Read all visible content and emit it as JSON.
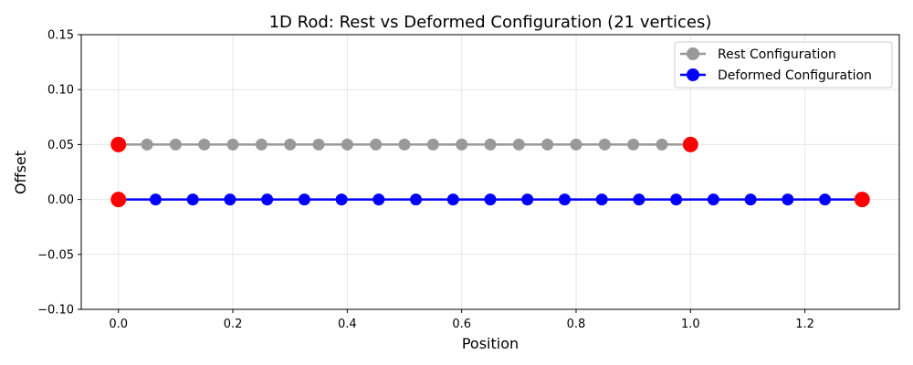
{
  "chart_data": {
    "type": "line",
    "title": "1D Rod: Rest vs Deformed Configuration (21 vertices)",
    "xlabel": "Position",
    "ylabel": "Offset",
    "xlim": [
      -0.065,
      1.365
    ],
    "ylim": [
      -0.1,
      0.15
    ],
    "xticks": [
      "0.0",
      "0.2",
      "0.4",
      "0.6",
      "0.8",
      "1.0",
      "1.2"
    ],
    "yticks": [
      "−0.10",
      "−0.05",
      "0.00",
      "0.05",
      "0.10",
      "0.15"
    ],
    "grid": true,
    "legend_position": "top-right",
    "series": [
      {
        "name": "Rest Configuration",
        "color": "#999999",
        "endpoint_color": "#ff0000",
        "x": [
          0.0,
          0.05,
          0.1,
          0.15,
          0.2,
          0.25,
          0.3,
          0.35,
          0.4,
          0.45,
          0.5,
          0.55,
          0.6,
          0.65,
          0.7,
          0.75,
          0.8,
          0.85,
          0.9,
          0.95,
          1.0
        ],
        "y": [
          0.05,
          0.05,
          0.05,
          0.05,
          0.05,
          0.05,
          0.05,
          0.05,
          0.05,
          0.05,
          0.05,
          0.05,
          0.05,
          0.05,
          0.05,
          0.05,
          0.05,
          0.05,
          0.05,
          0.05,
          0.05
        ]
      },
      {
        "name": "Deformed Configuration",
        "color": "#0000ff",
        "endpoint_color": "#ff0000",
        "x": [
          0.0,
          0.065,
          0.13,
          0.195,
          0.26,
          0.325,
          0.39,
          0.455,
          0.52,
          0.585,
          0.65,
          0.715,
          0.78,
          0.845,
          0.91,
          0.975,
          1.04,
          1.105,
          1.17,
          1.235,
          1.3
        ],
        "y": [
          0.0,
          0.0,
          0.0,
          0.0,
          0.0,
          0.0,
          0.0,
          0.0,
          0.0,
          0.0,
          0.0,
          0.0,
          0.0,
          0.0,
          0.0,
          0.0,
          0.0,
          0.0,
          0.0,
          0.0,
          0.0
        ]
      }
    ]
  }
}
